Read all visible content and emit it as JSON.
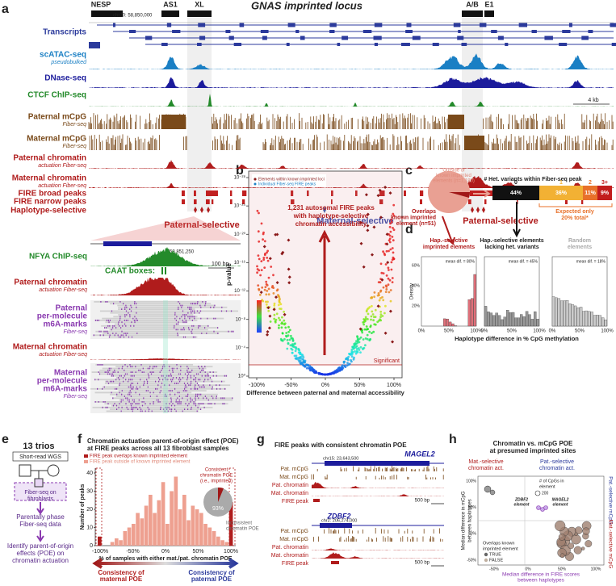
{
  "panel_labels": [
    "a",
    "b",
    "c",
    "d",
    "e",
    "f",
    "g",
    "h"
  ],
  "a": {
    "title": "GNAS imprinted locus",
    "genes": [
      "NESP",
      "AS1",
      "XL",
      "A/B",
      "E1"
    ],
    "coordinate": "chr20: 58,850,000",
    "scale": "4 kb",
    "tracks": [
      {
        "label": "Transcripts"
      },
      {
        "label": "scATAC-seq",
        "sublabel": "pseudobulked"
      },
      {
        "label": "DNase-seq"
      },
      {
        "label": "CTCF ChIP-seq"
      },
      {
        "label": "Paternal mCpG",
        "sublabel": "Fiber-seq"
      },
      {
        "label": "Maternal mCpG",
        "sublabel": "Fiber-seq"
      },
      {
        "label": "Paternal chromatin",
        "sublabel": "actuation Fiber-seq"
      },
      {
        "label": "Maternal chromatin",
        "sublabel": "actuation Fiber-seq"
      },
      {
        "label": "FIRE broad peaks"
      },
      {
        "label": "FIRE narrow peaks"
      },
      {
        "label": "Haplotype-selective"
      }
    ],
    "selective": [
      "Paternal-selective",
      "Maternal-selective",
      "Paternal-selective"
    ],
    "zoom": {
      "coordinate": "58,851,250",
      "scale": "100 bp",
      "caat": "CAAT boxes:",
      "tracks": [
        {
          "label": "NFYA ChIP-seq"
        },
        {
          "label": "Paternal chromatin",
          "sublabel": "actuation Fiber-seq"
        },
        {
          "label": "Paternal",
          "lines": [
            "per-molecule",
            "m6A-marks"
          ],
          "sublabel": "Fiber-seq"
        },
        {
          "label": "Maternal chromatin",
          "sublabel": "actuation Fiber-seq"
        },
        {
          "label": "Maternal",
          "lines": [
            "per-molecule",
            "m6A-marks"
          ],
          "sublabel": "Fiber-seq"
        }
      ]
    }
  },
  "b": {
    "ylabel": "p-value",
    "xlabel": "Difference between paternal and maternal accessibility",
    "legend": [
      "Elements within known imprinted loci",
      "Individual Fiber-seq FIRE peaks"
    ],
    "annotation": [
      "1,231 autosomal FIRE peaks",
      "with haplotype-selective",
      "chromatin accessibility"
    ],
    "significant": "Significant",
    "xticks": [
      "-100%",
      "-50%",
      "0%",
      "50%",
      "100%"
    ],
    "yticks": [
      "10⁻²⁸",
      "10⁻²⁴",
      "10⁻²⁰",
      "10⁻¹⁶",
      "10⁻¹²",
      "10⁻⁸",
      "10⁻⁴",
      "10⁰"
    ]
  },
  "c": {
    "outside": [
      "Outside of",
      "known imprinted",
      "elements (n=1,180)"
    ],
    "overlaps": [
      "Overlaps",
      "known imprinted",
      "element (n=51)"
    ],
    "bar_title": "# Het. variants within Fiber-seq peak",
    "bar_categories": [
      "0",
      "1",
      "2",
      "3+"
    ],
    "bar_labels": [
      "44%",
      "36%",
      "11%",
      "9%"
    ],
    "expected": [
      "Expected only",
      "20% total*"
    ]
  },
  "d": {
    "panels": [
      {
        "title": [
          "Hap.-selective",
          "imprinted elements"
        ],
        "mean": "mean dif. = 80%"
      },
      {
        "title": [
          "Hap.-selective elements",
          "lacking het. variants"
        ],
        "mean": "mean dif. = 45%"
      },
      {
        "title": [
          "Random",
          "elements"
        ],
        "mean": "mean dif. = 18%"
      }
    ],
    "ylabel": "Density",
    "yticks": [
      "20%",
      "40%",
      "60%"
    ],
    "xticks": [
      "0%",
      "50%",
      "100%"
    ],
    "xlabel": "Haplotype difference in % CpG methylation"
  },
  "e": {
    "trios": "13 trios",
    "wgs": "Short-read WGS",
    "fiber": [
      "Fiber-seq on",
      "fibroblasts"
    ],
    "phase": [
      "Parentally phase",
      "Fiber-seq data"
    ],
    "identify": [
      "Identify parent-of-origin",
      "effects (POE) on",
      "chromatin actuation"
    ]
  },
  "f": {
    "title": [
      "Chromatin actuation parent-of-origin effect (POE)",
      "at FIRE peaks across all 13 fibroblast samples"
    ],
    "legend": [
      "FIRE peak overlaps known imprinted element",
      "FIRE peak outside of known imprinted element"
    ],
    "ylabel": "Number of peaks",
    "yticks": [
      "0",
      "10",
      "20",
      "30",
      "40"
    ],
    "xticks": [
      "-100%",
      "-50%",
      "0%",
      "50%",
      "100%"
    ],
    "xlabel": "% of samples with either mat./pat. chromatin POE",
    "consistent": [
      "Consistent",
      "chromatin POE",
      "(i.e., imprinted)"
    ],
    "pie_label": "93%",
    "inconsistent": [
      "Inconsistent",
      "chromatin POE"
    ],
    "maternal": [
      "Consistency of",
      "maternal POE"
    ],
    "paternal": [
      "Consistency of",
      "paternal POE"
    ]
  },
  "g": {
    "title": "FIRE peaks with consistent chromatin POE",
    "loci": [
      {
        "coordinate": "chr15: 23,643,500",
        "gene": "MAGEL2",
        "scale": "500 bp"
      },
      {
        "coordinate": "chr2: 206,274,000",
        "gene": "ZDBF2",
        "scale": "500 bp"
      }
    ],
    "tracks": [
      "Pat. mCpG",
      "Mat. mCpG",
      "Pat. chromatin",
      "Mat. chromatin",
      "FIRE peak"
    ]
  },
  "h": {
    "title": [
      "Chromatin vs. mCpG POE",
      "at presumed imprinted sites"
    ],
    "mat_act": [
      "Mat.-selective",
      "chromatin act."
    ],
    "pat_act": [
      "Pat.-selective",
      "chromatin act."
    ],
    "pat_mcpg": "Pat.-selective mCpG",
    "mat_mcpg": "Mat.-selective mCpG",
    "ylabel": [
      "Median difference in mCpG",
      "between haplotypes"
    ],
    "xlabel": [
      "Median difference in FIRE scores",
      "between haplotypes"
    ],
    "size_legend": [
      "# of CpGs in",
      "element"
    ],
    "size_value": "200",
    "zdbf2": [
      "ZDBF2",
      "element"
    ],
    "magel2": [
      "MAGEL2",
      "element"
    ],
    "overlaps": [
      "Overlaps known",
      "imprinted element"
    ],
    "legend": [
      "TRUE",
      "FALSE"
    ],
    "xticks": [
      "-50%",
      "0%",
      "50%",
      "100%"
    ],
    "yticks": [
      "100%",
      "50%",
      "0%",
      "-50%"
    ]
  }
}
